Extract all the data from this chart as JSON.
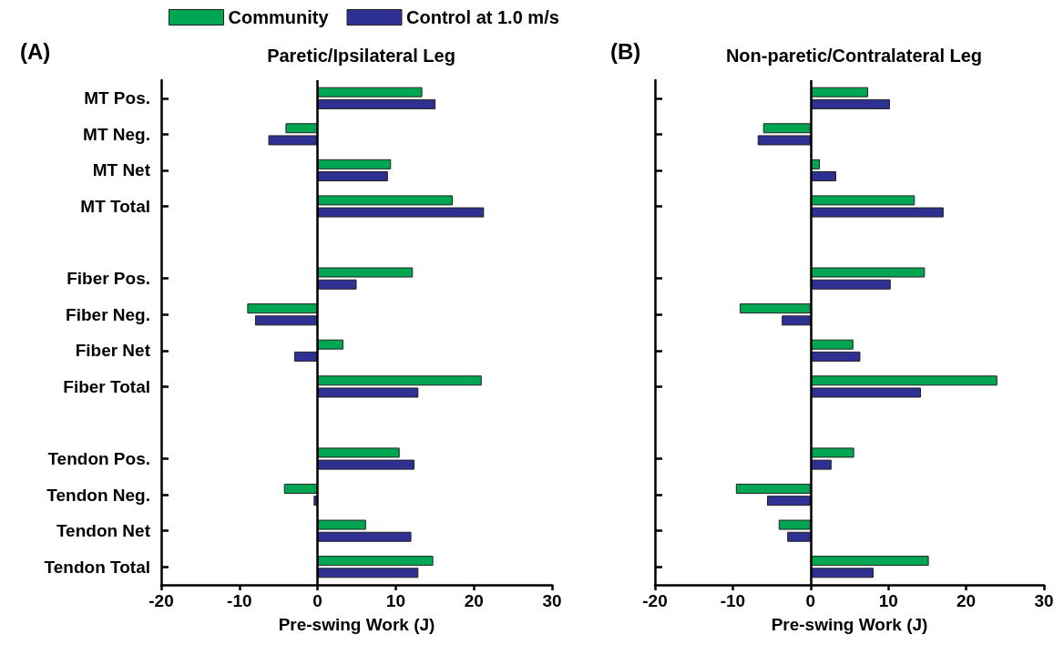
{
  "chart_data": [
    {
      "type": "bar",
      "orientation": "horizontal",
      "title": "Paretic/Ipsilateral Leg",
      "xlabel": "Pre-swing Work (J)",
      "annotations": [
        "(A)"
      ],
      "legend": "top",
      "grid": false,
      "ref_lines": [
        {
          "axis": "x",
          "value": 0
        }
      ],
      "categories": [
        "MT Pos.",
        "MT Neg.",
        "MT Net",
        "MT Total",
        null,
        "Fiber Pos.",
        "Fiber Neg.",
        "Fiber Net",
        "Fiber Total",
        null,
        "Tendon Pos.",
        "Tendon Neg.",
        "Tendon Net",
        "Tendon Total"
      ],
      "xlim": [
        -20,
        30
      ],
      "xticks": [
        -20,
        -10,
        0,
        10,
        20,
        30
      ],
      "series": [
        {
          "name": "Community",
          "color": "#00a651",
          "values": [
            13.4,
            -4.1,
            9.4,
            17.3,
            null,
            12.2,
            -9.0,
            3.3,
            21.0,
            null,
            10.5,
            -4.3,
            6.2,
            14.8
          ]
        },
        {
          "name": "Control at 1.0 m/s",
          "color": "#2e3192",
          "values": [
            15.1,
            -6.3,
            9.0,
            21.3,
            null,
            5.0,
            -8.0,
            -3.0,
            12.9,
            null,
            12.4,
            -0.5,
            12.0,
            12.9
          ]
        }
      ]
    },
    {
      "type": "bar",
      "orientation": "horizontal",
      "title": "Non-paretic/Contralateral Leg",
      "xlabel": "Pre-swing Work (J)",
      "annotations": [
        "(B)"
      ],
      "grid": false,
      "tick_labels": "x",
      "ref_lines": [
        {
          "axis": "x",
          "value": 0
        }
      ],
      "categories": [
        null,
        null,
        null,
        null,
        null,
        null,
        null,
        null,
        null,
        null,
        null,
        null,
        null,
        null
      ],
      "xlim": [
        -20,
        30
      ],
      "xticks": [
        -20,
        -10,
        0,
        10,
        20,
        30
      ],
      "series": [
        {
          "color": "#00a651",
          "values": [
            7.4,
            -6.1,
            1.2,
            13.4,
            null,
            14.7,
            -9.1,
            5.5,
            24.0,
            null,
            5.6,
            -9.6,
            -4.1,
            15.2
          ]
        },
        {
          "color": "#2e3192",
          "values": [
            10.2,
            -6.8,
            3.3,
            17.1,
            null,
            10.3,
            -3.7,
            6.4,
            14.2,
            null,
            2.7,
            -5.6,
            -3.0,
            8.1
          ]
        }
      ]
    }
  ]
}
